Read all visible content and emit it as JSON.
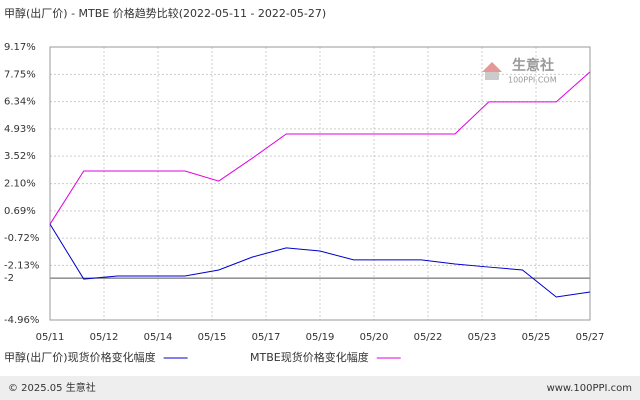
{
  "chart_data": {
    "type": "line",
    "title": "甲醇(出厂价) - MTBE 价格趋势比较(2022-05-11 - 2022-05-27)",
    "xticks": [
      "05/11",
      "05/12",
      "05/14",
      "05/15",
      "05/17",
      "05/19",
      "05/20",
      "05/22",
      "05/23",
      "05/25",
      "05/27"
    ],
    "series": [
      {
        "name": "甲醇(出厂价)现货价格变化幅度",
        "color": "#0000cc",
        "values": [
          0,
          -2.84,
          -2.68,
          -2.68,
          -2.68,
          -2.37,
          -1.7,
          -1.23,
          -1.39,
          -1.85,
          -1.85,
          -1.85,
          -2.06,
          -2.22,
          -2.37,
          -3.77,
          -3.51
        ]
      },
      {
        "name": "MTBE现货价格变化幅度",
        "color": "#e000e0",
        "values": [
          0,
          2.75,
          2.75,
          2.75,
          2.75,
          2.23,
          3.42,
          4.67,
          4.67,
          4.67,
          4.67,
          4.67,
          4.67,
          6.33,
          6.33,
          6.33,
          7.88
        ]
      }
    ],
    "ylim": [
      -4.96,
      9.17
    ],
    "yticks": [
      {
        "value": 9.17,
        "label": "9.17%"
      },
      {
        "value": 7.75,
        "label": "7.75%"
      },
      {
        "value": 6.34,
        "label": "6.34%"
      },
      {
        "value": 4.93,
        "label": "4.93%"
      },
      {
        "value": 3.52,
        "label": "3.52%"
      },
      {
        "value": 2.1,
        "label": "2.10%"
      },
      {
        "value": 0.69,
        "label": "0.69%"
      },
      {
        "value": -0.72,
        "label": "-0.72%"
      },
      {
        "value": -2.13,
        "label": "-2.13%"
      },
      {
        "value": -4.96,
        "label": "-4.96%"
      }
    ],
    "reference_line": {
      "value": -2.79,
      "label": "-2"
    },
    "grid": true,
    "watermark": {
      "name": "生意社",
      "site": "100PPI.COM"
    },
    "footer": {
      "left": "© 2025.05 生意社",
      "right": "www.100PPI.com"
    }
  }
}
